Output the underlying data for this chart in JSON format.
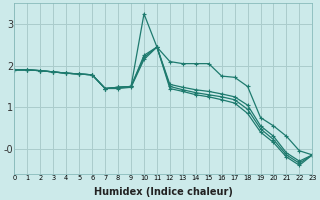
{
  "xlabel": "Humidex (Indice chaleur)",
  "bg_color": "#cceaea",
  "grid_color": "#aacccc",
  "line_color": "#1e7a6e",
  "x": [
    0,
    1,
    2,
    3,
    4,
    5,
    6,
    7,
    8,
    9,
    10,
    11,
    12,
    13,
    14,
    15,
    16,
    17,
    18,
    19,
    20,
    21,
    22,
    23
  ],
  "series": [
    [
      1.9,
      1.9,
      1.88,
      1.85,
      1.82,
      1.8,
      1.78,
      1.45,
      1.48,
      1.5,
      3.25,
      2.45,
      2.1,
      2.05,
      2.05,
      2.05,
      1.75,
      1.72,
      1.5,
      0.75,
      0.55,
      0.3,
      -0.05,
      -0.15
    ],
    [
      1.9,
      1.9,
      1.88,
      1.85,
      1.82,
      1.8,
      1.78,
      1.45,
      1.48,
      1.5,
      2.25,
      2.45,
      1.55,
      1.48,
      1.42,
      1.38,
      1.32,
      1.25,
      1.05,
      0.55,
      0.3,
      -0.1,
      -0.3,
      -0.15
    ],
    [
      1.9,
      1.9,
      1.88,
      1.85,
      1.82,
      1.8,
      1.78,
      1.45,
      1.48,
      1.5,
      2.2,
      2.45,
      1.5,
      1.42,
      1.35,
      1.3,
      1.25,
      1.18,
      0.95,
      0.48,
      0.22,
      -0.15,
      -0.35,
      -0.15
    ],
    [
      1.9,
      1.9,
      1.88,
      1.85,
      1.82,
      1.8,
      1.78,
      1.45,
      1.45,
      1.48,
      2.15,
      2.45,
      1.45,
      1.38,
      1.3,
      1.25,
      1.18,
      1.1,
      0.85,
      0.4,
      0.15,
      -0.2,
      -0.4,
      -0.15
    ]
  ],
  "xlim": [
    0,
    23
  ],
  "ylim": [
    -0.6,
    3.5
  ],
  "yticks": [
    0,
    1,
    2,
    3
  ],
  "ytick_labels": [
    "-0",
    "1",
    "2",
    "3"
  ],
  "xticks": [
    0,
    1,
    2,
    3,
    4,
    5,
    6,
    7,
    8,
    9,
    10,
    11,
    12,
    13,
    14,
    15,
    16,
    17,
    18,
    19,
    20,
    21,
    22,
    23
  ]
}
